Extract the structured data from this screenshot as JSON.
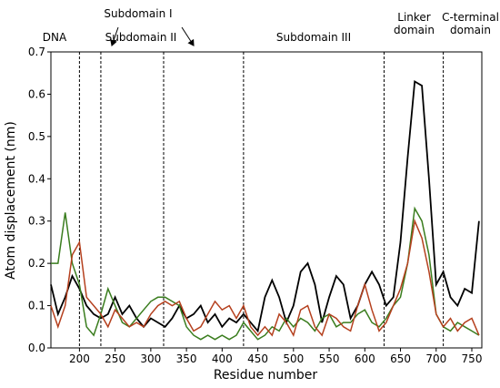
{
  "chart_data": {
    "type": "line",
    "xlabel": "Residue number",
    "ylabel": "Atom displacement (nm)",
    "annotations": [
      "DNA",
      "Subdomain I",
      "Subdomain II",
      "Subdomain III",
      "Linker domain",
      "C-terminal domain"
    ],
    "dividers": [
      200,
      230,
      318,
      430,
      627,
      710
    ],
    "xlim": [
      160,
      764
    ],
    "xticks": [
      200,
      250,
      300,
      350,
      400,
      450,
      500,
      550,
      600,
      650,
      700,
      750
    ],
    "ylim": [
      0,
      0.7
    ],
    "yticks": [
      {
        "value": 0,
        "label": "0.0"
      },
      0.1,
      0.2,
      0.3,
      0.4,
      0.5,
      0.6,
      0.7
    ],
    "x": [
      160,
      170,
      180,
      190,
      200,
      210,
      220,
      230,
      240,
      250,
      260,
      270,
      280,
      290,
      300,
      310,
      320,
      330,
      340,
      350,
      360,
      370,
      380,
      390,
      400,
      410,
      420,
      430,
      440,
      450,
      460,
      470,
      480,
      490,
      500,
      510,
      520,
      530,
      540,
      550,
      560,
      570,
      580,
      590,
      600,
      610,
      620,
      630,
      640,
      650,
      660,
      670,
      680,
      690,
      700,
      710,
      720,
      730,
      740,
      750,
      760
    ],
    "series": [
      {
        "color": "#000000",
        "values": [
          0.15,
          0.08,
          0.12,
          0.17,
          0.14,
          0.1,
          0.08,
          0.07,
          0.08,
          0.12,
          0.08,
          0.1,
          0.07,
          0.05,
          0.07,
          0.06,
          0.05,
          0.07,
          0.1,
          0.07,
          0.08,
          0.1,
          0.06,
          0.08,
          0.05,
          0.07,
          0.06,
          0.08,
          0.06,
          0.04,
          0.12,
          0.16,
          0.12,
          0.06,
          0.1,
          0.18,
          0.2,
          0.15,
          0.06,
          0.12,
          0.17,
          0.15,
          0.07,
          0.1,
          0.15,
          0.18,
          0.15,
          0.1,
          0.12,
          0.25,
          0.45,
          0.63,
          0.62,
          0.4,
          0.15,
          0.18,
          0.12,
          0.1,
          0.14,
          0.13,
          0.3
        ]
      },
      {
        "color": "#3a7d1e",
        "values": [
          0.2,
          0.2,
          0.32,
          0.2,
          0.15,
          0.05,
          0.03,
          0.08,
          0.14,
          0.1,
          0.06,
          0.05,
          0.07,
          0.09,
          0.11,
          0.12,
          0.12,
          0.11,
          0.1,
          0.05,
          0.03,
          0.02,
          0.03,
          0.02,
          0.03,
          0.02,
          0.03,
          0.06,
          0.04,
          0.02,
          0.03,
          0.05,
          0.04,
          0.07,
          0.05,
          0.07,
          0.06,
          0.04,
          0.07,
          0.08,
          0.05,
          0.06,
          0.06,
          0.08,
          0.09,
          0.06,
          0.05,
          0.07,
          0.1,
          0.12,
          0.2,
          0.33,
          0.3,
          0.22,
          0.08,
          0.05,
          0.04,
          0.06,
          0.05,
          0.04,
          0.03
        ]
      },
      {
        "color": "#b5401e",
        "values": [
          0.1,
          0.05,
          0.1,
          0.22,
          0.25,
          0.12,
          0.1,
          0.08,
          0.05,
          0.09,
          0.07,
          0.05,
          0.06,
          0.05,
          0.08,
          0.1,
          0.11,
          0.1,
          0.11,
          0.07,
          0.04,
          0.05,
          0.08,
          0.11,
          0.09,
          0.1,
          0.07,
          0.1,
          0.05,
          0.03,
          0.05,
          0.03,
          0.08,
          0.06,
          0.03,
          0.09,
          0.1,
          0.05,
          0.03,
          0.08,
          0.07,
          0.05,
          0.04,
          0.1,
          0.15,
          0.09,
          0.04,
          0.06,
          0.1,
          0.14,
          0.2,
          0.3,
          0.26,
          0.18,
          0.08,
          0.05,
          0.07,
          0.04,
          0.06,
          0.07,
          0.03
        ]
      }
    ]
  }
}
